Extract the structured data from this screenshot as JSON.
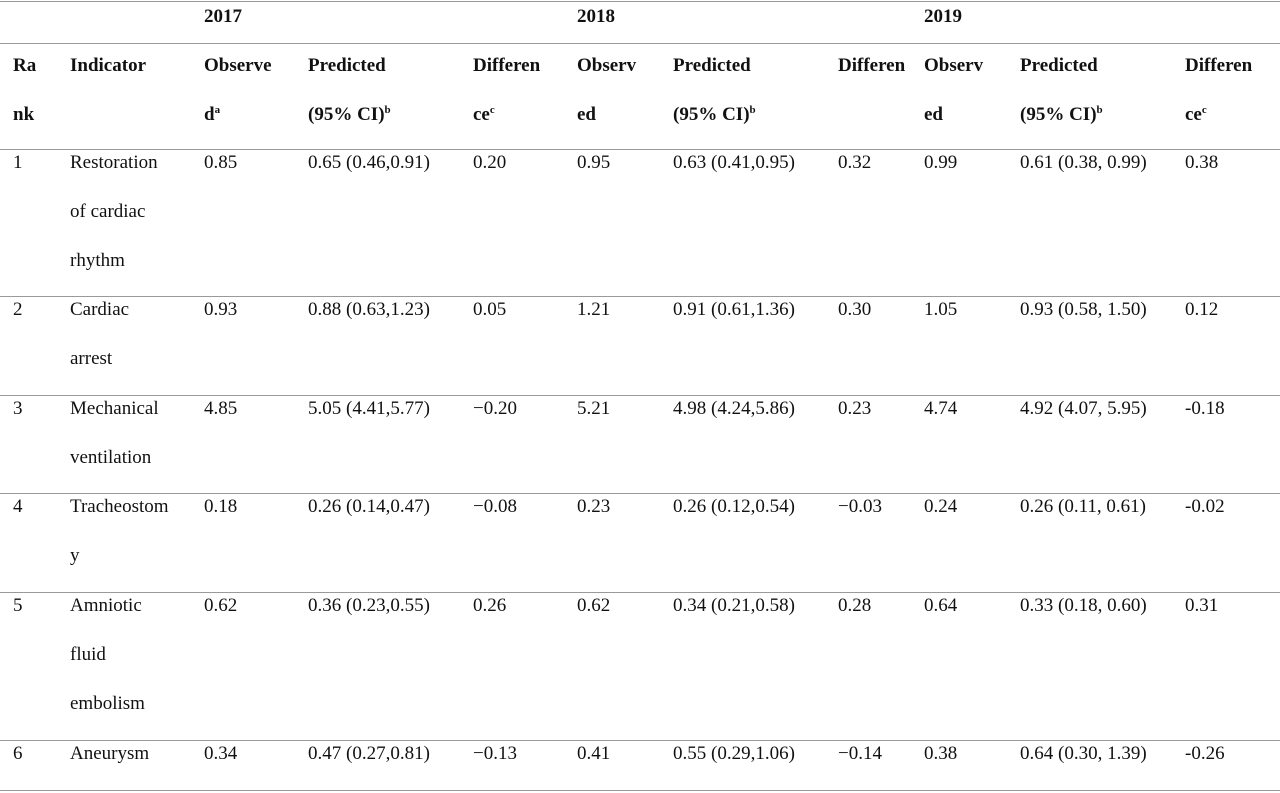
{
  "years": [
    "2017",
    "2018",
    "2019"
  ],
  "header": {
    "rank": [
      "Ra",
      "nk"
    ],
    "indicator": "Indicator",
    "observed_a": [
      "Observe",
      "d"
    ],
    "observed_b": [
      "Observ",
      "ed"
    ],
    "predicted": [
      "Predicted",
      "(95% CI)"
    ],
    "difference": [
      "Differen",
      "ce"
    ],
    "sup_observed": "a",
    "sup_predicted": "b",
    "sup_difference": "c"
  },
  "rows": [
    {
      "rank": "1",
      "indicator_lines": [
        "Restoration",
        "of cardiac",
        "rhythm"
      ],
      "values": [
        "0.85",
        "0.65 (0.46,0.91)",
        "0.20",
        "0.95",
        "0.63 (0.41,0.95)",
        "0.32",
        "0.99",
        "0.61 (0.38, 0.99)",
        "0.38"
      ]
    },
    {
      "rank": "2",
      "indicator_lines": [
        "Cardiac",
        "arrest"
      ],
      "values": [
        "0.93",
        "0.88 (0.63,1.23)",
        "0.05",
        "1.21",
        "0.91 (0.61,1.36)",
        "0.30",
        "1.05",
        "0.93 (0.58, 1.50)",
        "0.12"
      ]
    },
    {
      "rank": "3",
      "indicator_lines": [
        "Mechanical",
        "ventilation"
      ],
      "values": [
        "4.85",
        "5.05 (4.41,5.77)",
        "−0.20",
        "5.21",
        "4.98 (4.24,5.86)",
        "0.23",
        "4.74",
        "4.92 (4.07, 5.95)",
        "-0.18"
      ]
    },
    {
      "rank": "4",
      "indicator_lines": [
        "Tracheostom",
        "y"
      ],
      "values": [
        "0.18",
        "0.26 (0.14,0.47)",
        "−0.08",
        "0.23",
        "0.26 (0.12,0.54)",
        "−0.03",
        "0.24",
        "0.26 (0.11, 0.61)",
        "-0.02"
      ]
    },
    {
      "rank": "5",
      "indicator_lines": [
        "Amniotic",
        "fluid",
        "embolism"
      ],
      "values": [
        "0.62",
        "0.36 (0.23,0.55)",
        "0.26",
        "0.62",
        "0.34 (0.21,0.58)",
        "0.28",
        "0.64",
        "0.33 (0.18, 0.60)",
        "0.31"
      ]
    },
    {
      "rank": "6",
      "indicator_lines": [
        "Aneurysm"
      ],
      "values": [
        "0.34",
        "0.47 (0.27,0.81)",
        "−0.13",
        "0.41",
        "0.55 (0.29,1.06)",
        "−0.14",
        "0.38",
        "0.64 (0.30, 1.39)",
        "-0.26"
      ]
    }
  ]
}
